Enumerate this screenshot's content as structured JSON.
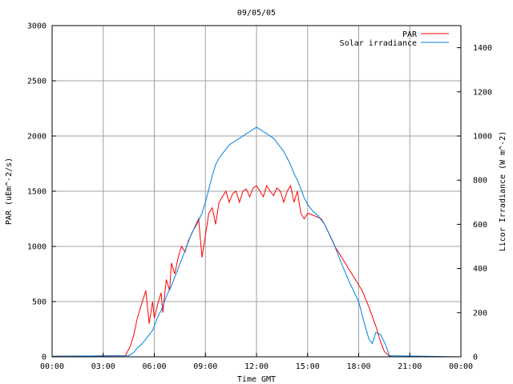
{
  "chart_data": {
    "type": "line",
    "title": "09/05/05",
    "xlabel": "Time GMT",
    "ylabel": "PAR (uEm^-2/s)",
    "y2label": "Licor Irradiance (W m^-2)",
    "x_ticks": [
      "00:00",
      "03:00",
      "06:00",
      "09:00",
      "12:00",
      "15:00",
      "18:00",
      "21:00",
      "00:00"
    ],
    "x_unit": "hours GMT",
    "xlim": [
      0,
      24
    ],
    "ylim": [
      0,
      3000
    ],
    "y_ticks": [
      0,
      500,
      1000,
      1500,
      2000,
      2500,
      3000
    ],
    "y2lim": [
      0,
      1500
    ],
    "y2_ticks": [
      0,
      200,
      400,
      600,
      800,
      1000,
      1200,
      1400
    ],
    "grid": true,
    "legend_position": "top-right",
    "series": [
      {
        "name": "PAR",
        "axis": "left",
        "color": "#ff0000",
        "x": [
          0,
          4.3,
          4.6,
          4.8,
          5.0,
          5.2,
          5.5,
          5.7,
          5.9,
          6.0,
          6.2,
          6.4,
          6.5,
          6.7,
          6.9,
          7.0,
          7.2,
          7.4,
          7.6,
          7.8,
          8.0,
          8.3,
          8.6,
          8.8,
          9.0,
          9.2,
          9.4,
          9.6,
          9.8,
          10.0,
          10.2,
          10.4,
          10.6,
          10.8,
          11.0,
          11.2,
          11.4,
          11.6,
          11.8,
          12.0,
          12.2,
          12.4,
          12.6,
          12.8,
          13.0,
          13.2,
          13.4,
          13.6,
          13.8,
          14.0,
          14.2,
          14.4,
          14.6,
          14.8,
          15.0,
          15.2,
          15.5,
          15.8,
          16.0,
          16.3,
          16.6,
          17.0,
          17.4,
          17.8,
          18.2,
          18.6,
          19.0,
          19.3,
          19.5,
          19.8,
          20.0,
          24
        ],
        "values": [
          5,
          10,
          100,
          200,
          350,
          450,
          600,
          300,
          500,
          350,
          480,
          580,
          400,
          700,
          600,
          850,
          750,
          900,
          1000,
          950,
          1050,
          1150,
          1250,
          900,
          1100,
          1300,
          1350,
          1200,
          1400,
          1450,
          1500,
          1400,
          1480,
          1500,
          1400,
          1500,
          1520,
          1450,
          1530,
          1550,
          1500,
          1450,
          1550,
          1500,
          1460,
          1530,
          1500,
          1400,
          1500,
          1550,
          1400,
          1500,
          1300,
          1250,
          1300,
          1290,
          1270,
          1250,
          1200,
          1100,
          1000,
          900,
          800,
          700,
          600,
          450,
          280,
          130,
          50,
          5,
          0,
          0
        ]
      },
      {
        "name": "Solar irradiance",
        "axis": "right",
        "color": "#0080e0",
        "x": [
          0,
          4.5,
          4.8,
          5.0,
          5.3,
          5.5,
          5.7,
          5.9,
          6.0,
          6.2,
          6.4,
          6.6,
          6.8,
          7.0,
          7.2,
          7.4,
          7.6,
          7.8,
          8.0,
          8.2,
          8.5,
          8.8,
          9.0,
          9.2,
          9.4,
          9.6,
          9.8,
          10.0,
          10.2,
          10.4,
          10.6,
          10.8,
          11.0,
          11.2,
          11.4,
          11.6,
          11.8,
          12.0,
          12.2,
          12.4,
          12.6,
          12.8,
          13.0,
          13.2,
          13.4,
          13.6,
          13.8,
          14.0,
          14.2,
          14.4,
          14.6,
          14.8,
          15.0,
          15.3,
          15.6,
          16.0,
          16.5,
          17.0,
          17.5,
          18.0,
          18.3,
          18.6,
          18.8,
          19.0,
          19.3,
          19.6,
          19.8,
          24
        ],
        "values": [
          2,
          5,
          20,
          40,
          60,
          80,
          100,
          120,
          140,
          180,
          210,
          250,
          290,
          320,
          360,
          400,
          440,
          480,
          520,
          560,
          600,
          650,
          700,
          760,
          820,
          870,
          900,
          920,
          940,
          960,
          970,
          980,
          990,
          1000,
          1010,
          1020,
          1030,
          1040,
          1030,
          1020,
          1010,
          1000,
          990,
          970,
          950,
          930,
          900,
          870,
          830,
          800,
          760,
          720,
          690,
          660,
          640,
          600,
          520,
          420,
          330,
          250,
          160,
          80,
          60,
          110,
          100,
          50,
          5,
          0
        ]
      }
    ]
  }
}
